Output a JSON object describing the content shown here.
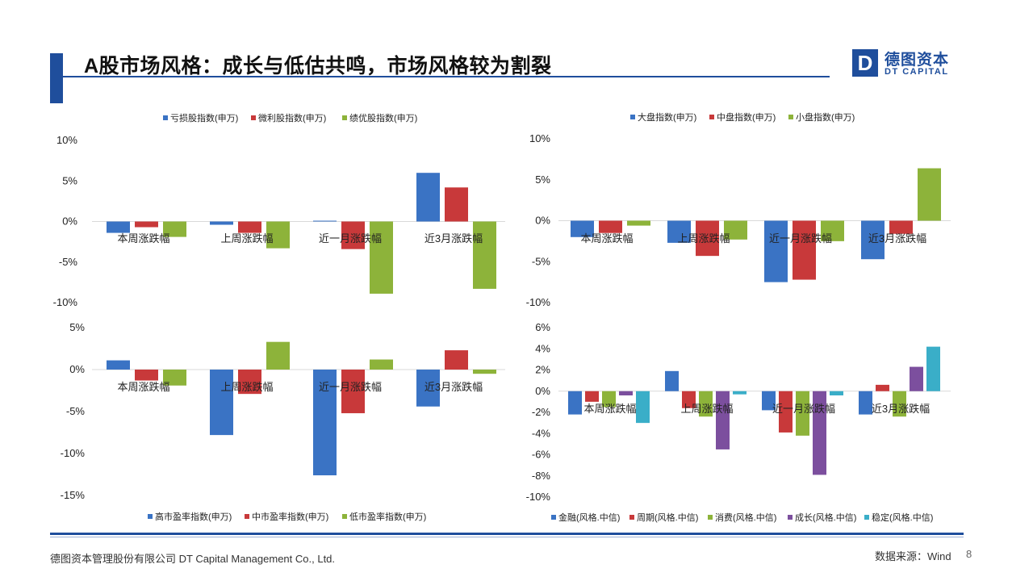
{
  "header": {
    "title": "A股市场风格：成长与低估共鸣，市场风格较为割裂"
  },
  "logo": {
    "mark": "D",
    "cn": "德图资本",
    "en": "DT CAPITAL"
  },
  "colors": {
    "blue": "#3a73c4",
    "red": "#c8393a",
    "green": "#8db33a",
    "purple": "#7c4f9e",
    "teal": "#3aaec8",
    "brand": "#1f4e9c"
  },
  "footer": {
    "company": "德图资本管理股份有限公司 DT Capital Management Co., Ltd.",
    "source": "数据来源：Wind",
    "page": "8"
  },
  "chart_data": [
    {
      "type": "bar",
      "categories": [
        "本周涨跌幅",
        "上周涨跌幅",
        "近一月涨跌幅",
        "近3月涨跌幅"
      ],
      "series": [
        {
          "name": "亏损股指数(申万)",
          "values": [
            -1.4,
            -0.4,
            0.1,
            6.0
          ]
        },
        {
          "name": "微利股指数(申万)",
          "values": [
            -0.7,
            -1.4,
            -3.4,
            4.2
          ]
        },
        {
          "name": "绩优股指数(申万)",
          "values": [
            -1.9,
            -3.3,
            -8.9,
            -8.3
          ]
        }
      ],
      "ylim": [
        -10,
        10
      ],
      "yticks": [
        10,
        5,
        0,
        -5,
        -10
      ],
      "yformat": "percent",
      "legend": "top",
      "grid": false
    },
    {
      "type": "bar",
      "categories": [
        "本周涨跌幅",
        "上周涨跌幅",
        "近一月涨跌幅",
        "近3月涨跌幅"
      ],
      "series": [
        {
          "name": "大盘指数(申万)",
          "values": [
            -2.0,
            -2.7,
            -7.5,
            -4.7
          ]
        },
        {
          "name": "中盘指数(申万)",
          "values": [
            -1.5,
            -4.3,
            -7.2,
            -1.6
          ]
        },
        {
          "name": "小盘指数(申万)",
          "values": [
            -0.6,
            -2.3,
            -2.5,
            6.4
          ]
        }
      ],
      "ylim": [
        -10,
        10
      ],
      "yticks": [
        10,
        5,
        0,
        -5,
        -10
      ],
      "yformat": "percent",
      "legend": "top",
      "grid": false
    },
    {
      "type": "bar",
      "categories": [
        "本周涨跌幅",
        "上周涨跌幅",
        "近一月涨跌幅",
        "近3月涨跌幅"
      ],
      "series": [
        {
          "name": "高市盈率指数(申万)",
          "values": [
            1.1,
            -7.8,
            -12.6,
            -4.4
          ]
        },
        {
          "name": "中市盈率指数(申万)",
          "values": [
            -1.3,
            -2.9,
            -5.2,
            2.3
          ]
        },
        {
          "name": "低市盈率指数(申万)",
          "values": [
            -1.9,
            3.3,
            1.2,
            -0.5
          ]
        }
      ],
      "ylim": [
        -15,
        5
      ],
      "yticks": [
        5,
        0,
        -5,
        -10,
        -15
      ],
      "yformat": "percent",
      "legend": "bottom",
      "grid": false
    },
    {
      "type": "bar",
      "categories": [
        "本周涨跌幅",
        "上周涨跌幅",
        "近一月涨跌幅",
        "近3月涨跌幅"
      ],
      "series": [
        {
          "name": "金融(风格.中信)",
          "values": [
            -2.2,
            1.9,
            -1.8,
            -2.2
          ]
        },
        {
          "name": "周期(风格.中信)",
          "values": [
            -1.0,
            -1.6,
            -3.9,
            0.6
          ]
        },
        {
          "name": "消费(风格.中信)",
          "values": [
            -1.5,
            -2.4,
            -4.2,
            -2.4
          ]
        },
        {
          "name": "成长(风格.中信)",
          "values": [
            -0.4,
            -5.5,
            -7.9,
            2.3
          ]
        },
        {
          "name": "稳定(风格.中信)",
          "values": [
            -3.0,
            -0.3,
            -0.4,
            4.2
          ]
        }
      ],
      "ylim": [
        -10,
        6
      ],
      "yticks": [
        6,
        4,
        2,
        0,
        -2,
        -4,
        -6,
        -8,
        -10
      ],
      "yformat": "percent",
      "legend": "bottom",
      "grid": false
    }
  ]
}
